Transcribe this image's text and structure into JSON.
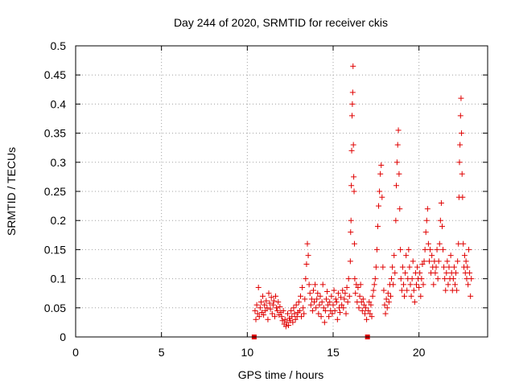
{
  "chart_data": {
    "type": "scatter",
    "title": "Day 244 of 2020, SRMTID for receiver ckis",
    "xlabel": "GPS time / hours",
    "ylabel": "SRMTID / TECUs",
    "xlim": [
      0,
      24
    ],
    "ylim": [
      0,
      0.5
    ],
    "xticks": [
      0,
      5,
      10,
      15,
      20
    ],
    "xtick_labels": [
      "0",
      "5",
      "10",
      "15",
      "20"
    ],
    "yticks": [
      0,
      0.05,
      0.1,
      0.15,
      0.2,
      0.25,
      0.3,
      0.35,
      0.4,
      0.45,
      0.5
    ],
    "ytick_labels": [
      "0",
      "0.05",
      "0.1",
      "0.15",
      "0.2",
      "0.25",
      "0.3",
      "0.35",
      "0.4",
      "0.45",
      "0.5"
    ],
    "grid": true,
    "marker": "+",
    "color": "#e00000",
    "baseline_markers_x": [
      10.4,
      17.0
    ],
    "series": [
      {
        "name": "SRMTID",
        "points": [
          [
            10.45,
            0.045
          ],
          [
            10.5,
            0.03
          ],
          [
            10.55,
            0.055
          ],
          [
            10.6,
            0.04
          ],
          [
            10.65,
            0.085
          ],
          [
            10.7,
            0.035
          ],
          [
            10.75,
            0.05
          ],
          [
            10.8,
            0.06
          ],
          [
            10.85,
            0.042
          ],
          [
            10.9,
            0.07
          ],
          [
            10.95,
            0.038
          ],
          [
            11.0,
            0.055
          ],
          [
            11.05,
            0.045
          ],
          [
            11.1,
            0.062
          ],
          [
            11.15,
            0.05
          ],
          [
            11.2,
            0.03
          ],
          [
            11.25,
            0.075
          ],
          [
            11.3,
            0.058
          ],
          [
            11.35,
            0.048
          ],
          [
            11.4,
            0.068
          ],
          [
            11.45,
            0.04
          ],
          [
            11.5,
            0.055
          ],
          [
            11.55,
            0.062
          ],
          [
            11.6,
            0.035
          ],
          [
            11.65,
            0.07
          ],
          [
            11.7,
            0.05
          ],
          [
            11.75,
            0.045
          ],
          [
            11.8,
            0.06
          ],
          [
            11.85,
            0.038
          ],
          [
            11.9,
            0.052
          ],
          [
            11.95,
            0.042
          ],
          [
            12.0,
            0.035
          ],
          [
            12.05,
            0.028
          ],
          [
            12.1,
            0.045
          ],
          [
            12.15,
            0.022
          ],
          [
            12.2,
            0.03
          ],
          [
            12.25,
            0.018
          ],
          [
            12.3,
            0.025
          ],
          [
            12.35,
            0.04
          ],
          [
            12.4,
            0.02
          ],
          [
            12.45,
            0.032
          ],
          [
            12.5,
            0.028
          ],
          [
            12.55,
            0.045
          ],
          [
            12.6,
            0.035
          ],
          [
            12.65,
            0.025
          ],
          [
            12.7,
            0.05
          ],
          [
            12.75,
            0.04
          ],
          [
            12.8,
            0.03
          ],
          [
            12.85,
            0.055
          ],
          [
            12.9,
            0.035
          ],
          [
            12.95,
            0.042
          ],
          [
            13.0,
            0.06
          ],
          [
            13.05,
            0.045
          ],
          [
            13.1,
            0.07
          ],
          [
            13.15,
            0.035
          ],
          [
            13.2,
            0.085
          ],
          [
            13.25,
            0.05
          ],
          [
            13.3,
            0.04
          ],
          [
            13.35,
            0.065
          ],
          [
            13.4,
            0.1
          ],
          [
            13.45,
            0.125
          ],
          [
            13.5,
            0.16
          ],
          [
            13.55,
            0.14
          ],
          [
            13.6,
            0.09
          ],
          [
            13.65,
            0.075
          ],
          [
            13.7,
            0.055
          ],
          [
            13.75,
            0.065
          ],
          [
            13.8,
            0.045
          ],
          [
            13.85,
            0.08
          ],
          [
            13.9,
            0.06
          ],
          [
            13.95,
            0.09
          ],
          [
            14.0,
            0.05
          ],
          [
            14.05,
            0.065
          ],
          [
            14.1,
            0.075
          ],
          [
            14.15,
            0.04
          ],
          [
            14.2,
            0.055
          ],
          [
            14.25,
            0.07
          ],
          [
            14.3,
            0.035
          ],
          [
            14.35,
            0.06
          ],
          [
            14.4,
            0.09
          ],
          [
            14.45,
            0.05
          ],
          [
            14.5,
            0.025
          ],
          [
            14.55,
            0.045
          ],
          [
            14.6,
            0.065
          ],
          [
            14.65,
            0.078
          ],
          [
            14.7,
            0.055
          ],
          [
            14.75,
            0.035
          ],
          [
            14.8,
            0.06
          ],
          [
            14.85,
            0.045
          ],
          [
            14.9,
            0.07
          ],
          [
            14.95,
            0.04
          ],
          [
            15.0,
            0.055
          ],
          [
            15.05,
            0.08
          ],
          [
            15.1,
            0.045
          ],
          [
            15.15,
            0.065
          ],
          [
            15.2,
            0.06
          ],
          [
            15.25,
            0.03
          ],
          [
            15.3,
            0.075
          ],
          [
            15.35,
            0.05
          ],
          [
            15.4,
            0.042
          ],
          [
            15.45,
            0.068
          ],
          [
            15.5,
            0.055
          ],
          [
            15.55,
            0.08
          ],
          [
            15.6,
            0.05
          ],
          [
            15.65,
            0.065
          ],
          [
            15.7,
            0.075
          ],
          [
            15.75,
            0.04
          ],
          [
            15.8,
            0.085
          ],
          [
            15.85,
            0.06
          ],
          [
            15.9,
            0.1
          ],
          [
            15.95,
            0.07
          ],
          [
            16.0,
            0.13
          ],
          [
            16.02,
            0.18
          ],
          [
            16.04,
            0.2
          ],
          [
            16.06,
            0.26
          ],
          [
            16.08,
            0.32
          ],
          [
            16.1,
            0.38
          ],
          [
            16.12,
            0.4
          ],
          [
            16.14,
            0.42
          ],
          [
            16.16,
            0.465
          ],
          [
            16.18,
            0.33
          ],
          [
            16.2,
            0.275
          ],
          [
            16.22,
            0.25
          ],
          [
            16.24,
            0.16
          ],
          [
            16.26,
            0.1
          ],
          [
            16.3,
            0.075
          ],
          [
            16.35,
            0.09
          ],
          [
            16.4,
            0.06
          ],
          [
            16.45,
            0.085
          ],
          [
            16.5,
            0.05
          ],
          [
            16.55,
            0.07
          ],
          [
            16.6,
            0.09
          ],
          [
            16.65,
            0.06
          ],
          [
            16.7,
            0.045
          ],
          [
            16.75,
            0.065
          ],
          [
            16.8,
            0.055
          ],
          [
            16.85,
            0.04
          ],
          [
            16.9,
            0.05
          ],
          [
            16.95,
            0.03
          ],
          [
            17.05,
            0.045
          ],
          [
            17.1,
            0.06
          ],
          [
            17.15,
            0.04
          ],
          [
            17.2,
            0.055
          ],
          [
            17.25,
            0.035
          ],
          [
            17.3,
            0.07
          ],
          [
            17.35,
            0.08
          ],
          [
            17.4,
            0.09
          ],
          [
            17.45,
            0.1
          ],
          [
            17.5,
            0.12
          ],
          [
            17.55,
            0.15
          ],
          [
            17.6,
            0.19
          ],
          [
            17.65,
            0.225
          ],
          [
            17.7,
            0.25
          ],
          [
            17.75,
            0.28
          ],
          [
            17.8,
            0.295
          ],
          [
            17.85,
            0.24
          ],
          [
            17.9,
            0.12
          ],
          [
            17.95,
            0.08
          ],
          [
            18.0,
            0.055
          ],
          [
            18.05,
            0.04
          ],
          [
            18.1,
            0.065
          ],
          [
            18.15,
            0.05
          ],
          [
            18.2,
            0.075
          ],
          [
            18.25,
            0.06
          ],
          [
            18.3,
            0.09
          ],
          [
            18.35,
            0.07
          ],
          [
            18.4,
            0.1
          ],
          [
            18.45,
            0.12
          ],
          [
            18.5,
            0.09
          ],
          [
            18.55,
            0.14
          ],
          [
            18.6,
            0.11
          ],
          [
            18.65,
            0.2
          ],
          [
            18.68,
            0.26
          ],
          [
            18.72,
            0.3
          ],
          [
            18.76,
            0.33
          ],
          [
            18.8,
            0.355
          ],
          [
            18.84,
            0.28
          ],
          [
            18.88,
            0.22
          ],
          [
            18.92,
            0.15
          ],
          [
            18.95,
            0.1
          ],
          [
            19.0,
            0.08
          ],
          [
            19.05,
            0.12
          ],
          [
            19.1,
            0.09
          ],
          [
            19.15,
            0.07
          ],
          [
            19.2,
            0.11
          ],
          [
            19.25,
            0.14
          ],
          [
            19.3,
            0.08
          ],
          [
            19.35,
            0.1
          ],
          [
            19.4,
            0.15
          ],
          [
            19.45,
            0.12
          ],
          [
            19.5,
            0.09
          ],
          [
            19.55,
            0.07
          ],
          [
            19.6,
            0.1
          ],
          [
            19.65,
            0.13
          ],
          [
            19.7,
            0.08
          ],
          [
            19.75,
            0.06
          ],
          [
            19.8,
            0.11
          ],
          [
            19.85,
            0.09
          ],
          [
            19.9,
            0.12
          ],
          [
            19.95,
            0.1
          ],
          [
            20.0,
            0.085
          ],
          [
            20.05,
            0.11
          ],
          [
            20.1,
            0.07
          ],
          [
            20.15,
            0.1
          ],
          [
            20.2,
            0.125
          ],
          [
            20.25,
            0.09
          ],
          [
            20.3,
            0.13
          ],
          [
            20.35,
            0.15
          ],
          [
            20.4,
            0.18
          ],
          [
            20.45,
            0.2
          ],
          [
            20.5,
            0.22
          ],
          [
            20.55,
            0.16
          ],
          [
            20.6,
            0.13
          ],
          [
            20.65,
            0.15
          ],
          [
            20.7,
            0.11
          ],
          [
            20.75,
            0.14
          ],
          [
            20.8,
            0.12
          ],
          [
            20.85,
            0.09
          ],
          [
            20.9,
            0.13
          ],
          [
            20.95,
            0.11
          ],
          [
            21.0,
            0.12
          ],
          [
            21.05,
            0.15
          ],
          [
            21.1,
            0.1
          ],
          [
            21.15,
            0.13
          ],
          [
            21.2,
            0.16
          ],
          [
            21.25,
            0.2
          ],
          [
            21.3,
            0.23
          ],
          [
            21.35,
            0.19
          ],
          [
            21.4,
            0.15
          ],
          [
            21.45,
            0.12
          ],
          [
            21.5,
            0.1
          ],
          [
            21.55,
            0.08
          ],
          [
            21.6,
            0.11
          ],
          [
            21.65,
            0.13
          ],
          [
            21.7,
            0.09
          ],
          [
            21.75,
            0.12
          ],
          [
            21.8,
            0.1
          ],
          [
            21.85,
            0.14
          ],
          [
            21.9,
            0.11
          ],
          [
            21.95,
            0.08
          ],
          [
            22.0,
            0.1
          ],
          [
            22.05,
            0.12
          ],
          [
            22.1,
            0.09
          ],
          [
            22.15,
            0.11
          ],
          [
            22.2,
            0.08
          ],
          [
            22.25,
            0.13
          ],
          [
            22.3,
            0.16
          ],
          [
            22.33,
            0.24
          ],
          [
            22.36,
            0.3
          ],
          [
            22.39,
            0.33
          ],
          [
            22.42,
            0.38
          ],
          [
            22.45,
            0.41
          ],
          [
            22.48,
            0.35
          ],
          [
            22.51,
            0.28
          ],
          [
            22.54,
            0.24
          ],
          [
            22.58,
            0.16
          ],
          [
            22.62,
            0.12
          ],
          [
            22.66,
            0.14
          ],
          [
            22.7,
            0.11
          ],
          [
            22.74,
            0.13
          ],
          [
            22.78,
            0.1
          ],
          [
            22.82,
            0.12
          ],
          [
            22.86,
            0.09
          ],
          [
            22.9,
            0.15
          ],
          [
            22.95,
            0.11
          ],
          [
            23.0,
            0.07
          ],
          [
            23.05,
            0.1
          ]
        ]
      }
    ]
  }
}
